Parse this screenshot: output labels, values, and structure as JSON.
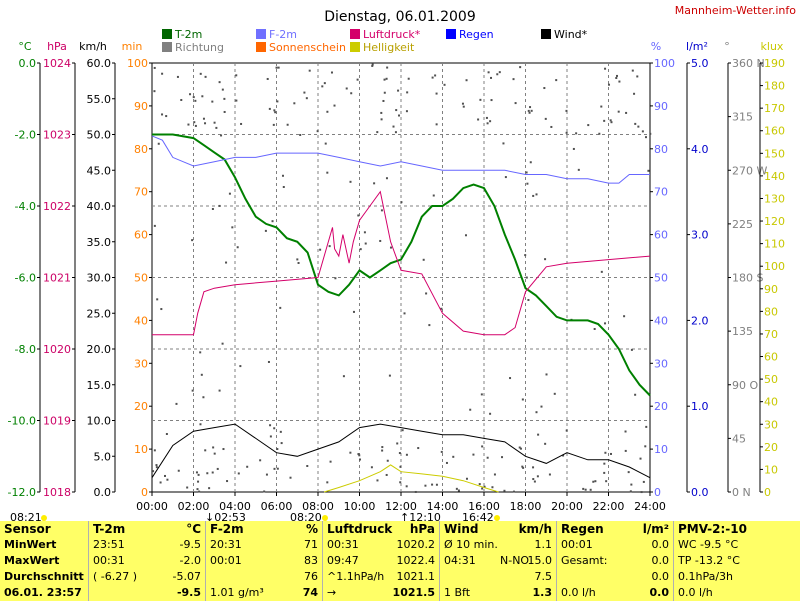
{
  "page": {
    "title": "Dienstag, 06.01.2009",
    "brand": "Mannheim-Wetter.info"
  },
  "legend": [
    {
      "key": "t2m",
      "label": "T-2m",
      "color": "#006600"
    },
    {
      "key": "richtung",
      "label": "Richtung",
      "color": "#808080"
    },
    {
      "key": "f2m",
      "label": "F-2m",
      "color": "#7070ff"
    },
    {
      "key": "sonne",
      "label": "Sonnenschein",
      "color": "#ff6600"
    },
    {
      "key": "luftdruck",
      "label": "Luftdruck*",
      "color": "#d4006a"
    },
    {
      "key": "helligkeit",
      "label": "Helligkeit",
      "color": "#cccc00"
    },
    {
      "key": "regen",
      "label": "Regen",
      "color": "#0000ff"
    },
    {
      "key": "wind",
      "label": "Wind*",
      "color": "#000000"
    }
  ],
  "chart_data": {
    "type": "line",
    "x_ticks": [
      "00:00",
      "02:00",
      "04:00",
      "06:00",
      "08:00",
      "10:00",
      "12:00",
      "14:00",
      "16:00",
      "18:00",
      "20:00",
      "22:00",
      "24:00"
    ],
    "axes": [
      {
        "unit": "°C",
        "color": "#008000",
        "ticks": [
          "0.0",
          "-2.0",
          "-4.0",
          "-6.0",
          "-8.0",
          "-10.0",
          "-12.0"
        ]
      },
      {
        "unit": "hPa",
        "color": "#cc0066",
        "ticks": [
          "1024",
          "1023",
          "1022",
          "1021",
          "1020",
          "1019",
          "1018"
        ]
      },
      {
        "unit": "km/h",
        "color": "#000000",
        "ticks": [
          "60.0",
          "55.0",
          "50.0",
          "45.0",
          "40.0",
          "35.0",
          "30.0",
          "25.0",
          "20.0",
          "15.0",
          "10.0",
          "5.0",
          "0.0"
        ]
      },
      {
        "unit": "min",
        "color": "#ff8000",
        "ticks": [
          "100",
          "90",
          "80",
          "70",
          "60",
          "50",
          "40",
          "30",
          "20",
          "10",
          "0"
        ]
      },
      {
        "unit": "%",
        "color": "#6666ff",
        "ticks": [
          "100",
          "90",
          "80",
          "70",
          "60",
          "50",
          "40",
          "30",
          "20",
          "10",
          "0"
        ]
      },
      {
        "unit": "l/m²",
        "color": "#0000cc",
        "ticks": [
          "5.0",
          "4.0",
          "3.0",
          "2.0",
          "1.0",
          "0.0"
        ]
      },
      {
        "unit": "°",
        "color": "#808080",
        "ticks": [
          "360 N",
          "315",
          "270 W",
          "225",
          "180 S",
          "135",
          "90 O",
          "45",
          "0 N"
        ]
      },
      {
        "unit": "klux",
        "color": "#c8c800",
        "ticks": [
          "190",
          "180",
          "170",
          "160",
          "150",
          "140",
          "130",
          "120",
          "110",
          "100",
          "90",
          "80",
          "70",
          "60",
          "50",
          "40",
          "30",
          "20",
          "10",
          "0"
        ]
      }
    ],
    "series": [
      {
        "name": "T-2m",
        "unit": "°C",
        "color": "#008000",
        "x": [
          0,
          1,
          2,
          2.5,
          3,
          3.5,
          4,
          4.5,
          5,
          5.5,
          6,
          6.5,
          7,
          7.5,
          8,
          8.5,
          9,
          9.5,
          10,
          10.5,
          11,
          11.5,
          12,
          12.5,
          13,
          13.5,
          14,
          14.5,
          15,
          15.5,
          16,
          16.5,
          17,
          17.5,
          18,
          18.5,
          19,
          19.5,
          20,
          20.5,
          21,
          21.5,
          22,
          22.5,
          23,
          23.5,
          24
        ],
        "y": [
          -2.0,
          -2.0,
          -2.1,
          -2.3,
          -2.5,
          -2.7,
          -3.2,
          -3.8,
          -4.3,
          -4.5,
          -4.6,
          -4.9,
          -5.0,
          -5.3,
          -6.2,
          -6.4,
          -6.5,
          -6.2,
          -5.8,
          -6.0,
          -5.8,
          -5.6,
          -5.5,
          -5.0,
          -4.3,
          -4.0,
          -4.0,
          -3.8,
          -3.5,
          -3.4,
          -3.5,
          -4.0,
          -4.8,
          -5.5,
          -6.3,
          -6.5,
          -6.8,
          -7.1,
          -7.2,
          -7.2,
          -7.2,
          -7.3,
          -7.6,
          -8.0,
          -8.6,
          -9.0,
          -9.3
        ]
      },
      {
        "name": "F-2m",
        "unit": "%",
        "color": "#6666ff",
        "x": [
          0,
          0.5,
          1,
          1.5,
          2,
          3,
          4,
          5,
          6,
          7,
          8,
          9,
          10,
          11,
          12,
          13,
          14,
          15,
          16,
          17,
          18,
          19,
          20,
          21,
          22,
          22.5,
          23,
          24
        ],
        "y": [
          83,
          82,
          78,
          77,
          76,
          77,
          78,
          78,
          79,
          79,
          79,
          78,
          77,
          76,
          77,
          76,
          75,
          75,
          75,
          75,
          74,
          74,
          73,
          73,
          72,
          72,
          74,
          74
        ]
      },
      {
        "name": "Luftdruck*",
        "unit": "hPa",
        "color": "#d4006a",
        "x": [
          0,
          2,
          2.2,
          2.5,
          3,
          4,
          6,
          8,
          8.7,
          8.8,
          9,
          9.2,
          9.5,
          9.7,
          10,
          10.5,
          11,
          11.5,
          12,
          13,
          14,
          15,
          16,
          17,
          17.5,
          18,
          19,
          20,
          22,
          24
        ],
        "y": [
          1020.2,
          1020.2,
          1020.5,
          1020.8,
          1020.85,
          1020.9,
          1020.95,
          1021.0,
          1021.7,
          1021.4,
          1021.3,
          1021.6,
          1021.2,
          1021.5,
          1021.8,
          1022.0,
          1022.2,
          1021.5,
          1021.1,
          1021.05,
          1020.5,
          1020.25,
          1020.2,
          1020.2,
          1020.3,
          1020.8,
          1021.15,
          1021.2,
          1021.25,
          1021.3
        ]
      },
      {
        "name": "Wind*",
        "unit": "km/h",
        "color": "#000000",
        "x": [
          0,
          1,
          2,
          3,
          4,
          5,
          6,
          7,
          8,
          9,
          10,
          11,
          12,
          13,
          14,
          15,
          16,
          17,
          18,
          19,
          20,
          21,
          22,
          23,
          24
        ],
        "y": [
          2.0,
          6.5,
          8.5,
          9.0,
          9.5,
          7.5,
          5.5,
          5.0,
          6.0,
          7.0,
          9.0,
          9.5,
          9.0,
          8.5,
          8.0,
          8.0,
          7.5,
          7.0,
          5.0,
          4.0,
          5.5,
          4.5,
          4.5,
          3.5,
          2.0
        ]
      },
      {
        "name": "Helligkeit",
        "unit": "klux",
        "color": "#cccc00",
        "x": [
          8.3,
          9,
          10,
          11,
          11.5,
          12,
          13,
          14,
          15,
          16,
          16.7
        ],
        "y": [
          0,
          2,
          5,
          9,
          12,
          9,
          8,
          7,
          5,
          2,
          0
        ]
      }
    ],
    "time_labels": {
      "sunrise": "08:21",
      "left_marker": "02:53",
      "morning": "08:20",
      "noon": "12:10",
      "sunset": "16:42"
    }
  },
  "stats": {
    "sensor": {
      "header": "Sensor",
      "rows": [
        "MinWert",
        "MaxWert",
        "Durchschnitt",
        "06.01. 23:57"
      ]
    },
    "t2m": {
      "header": "T-2m",
      "unit": "°C",
      "rows": [
        [
          "23:51",
          "-9.5"
        ],
        [
          "00:31",
          "-2.0"
        ],
        [
          "( -6.27 )",
          "-5.07"
        ],
        [
          "",
          "-9.5"
        ]
      ]
    },
    "f2m": {
      "header": "F-2m",
      "unit": "%",
      "rows": [
        [
          "20:31",
          "71"
        ],
        [
          "00:01",
          "83"
        ],
        [
          "",
          "76"
        ],
        [
          "1.01 g/m³",
          "74"
        ]
      ]
    },
    "luftdruck": {
      "header": "Luftdruck",
      "unit": "hPa",
      "rows": [
        [
          "00:31",
          "1020.2"
        ],
        [
          "09:47",
          "1022.4"
        ],
        [
          "^1.1hPa/h",
          "1021.1"
        ],
        [
          "→",
          "1021.5"
        ]
      ]
    },
    "wind": {
      "header": "Wind",
      "unit": "km/h",
      "rows": [
        [
          "Ø 10 min.",
          "1.1"
        ],
        [
          "04:31",
          "N-NO",
          "15.0"
        ],
        [
          "",
          "7.5"
        ],
        [
          "1 Bft",
          "1.3"
        ]
      ]
    },
    "regen": {
      "header": "Regen",
      "unit": "l/m²",
      "rows": [
        [
          "00:01",
          "0.0"
        ],
        [
          "Gesamt:",
          "0.0"
        ],
        [
          "",
          "0.0"
        ],
        [
          "0.0 l/h",
          "0.0"
        ]
      ]
    },
    "pmv": {
      "header": "PMV-2:-10",
      "rows": [
        "WC -9.5 °C",
        "TP -13.2 °C",
        "0.1hPa/3h",
        "0.0 l/h"
      ]
    }
  }
}
